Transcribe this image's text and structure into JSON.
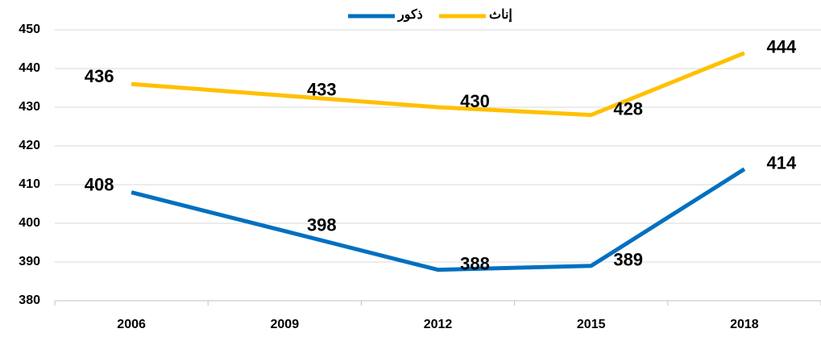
{
  "chart_data": {
    "type": "line",
    "categories": [
      "2006",
      "2009",
      "2012",
      "2015",
      "2018"
    ],
    "series": [
      {
        "name": "ذكور",
        "color": "#0070c0",
        "values": [
          408,
          398,
          388,
          389,
          414
        ]
      },
      {
        "name": "إناث",
        "color": "#ffc000",
        "values": [
          436,
          433,
          430,
          428,
          444
        ]
      }
    ],
    "ylim": [
      380,
      450
    ],
    "yticks": [
      380,
      390,
      400,
      410,
      420,
      430,
      440,
      450
    ],
    "grid": true,
    "legend": "top"
  }
}
